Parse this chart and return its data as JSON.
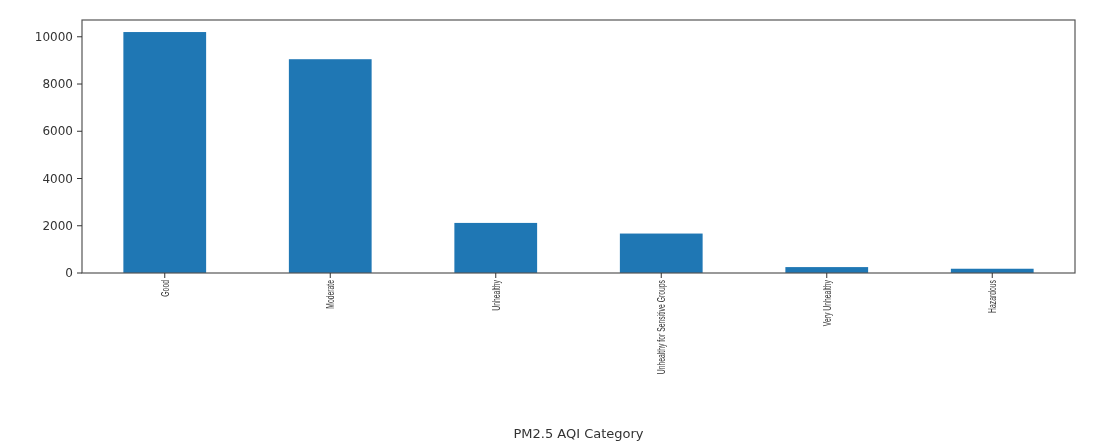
{
  "chart_data": {
    "type": "bar",
    "xlabel": "PM2.5 AQI Category",
    "categories": [
      "Good",
      "Moderate",
      "Unhealthy",
      "Unhealthy for Sensitive Groups",
      "Very Unhealthy",
      "Hazardous"
    ],
    "values": [
      10200,
      9050,
      2120,
      1670,
      250,
      180
    ],
    "color": "#1f77b4",
    "ylim": [
      0,
      10710
    ],
    "yticks": [
      0,
      2000,
      4000,
      6000,
      8000,
      10000
    ],
    "grid": false
  }
}
